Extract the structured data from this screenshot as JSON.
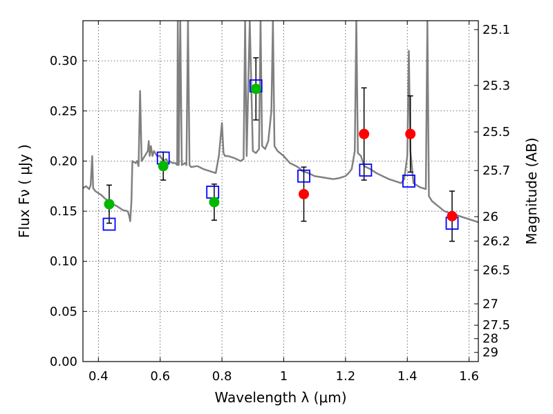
{
  "chart_data": {
    "type": "scatter",
    "title": "",
    "xlabel": "Wavelength  λ (μm)",
    "ylabel": "Flux  Fν  ( μJy )",
    "ylabel_right": "Magnitude (AB)",
    "xlim": [
      0.35,
      1.63
    ],
    "ylim": [
      0.0,
      0.34
    ],
    "grid": true,
    "x_ticks": [
      0.4,
      0.6,
      0.8,
      1.0,
      1.2,
      1.4,
      1.6
    ],
    "x_tick_labels": [
      "0.4",
      "0.6",
      "0.8",
      "1",
      "1.2",
      "1.4",
      "1.6"
    ],
    "y_ticks": [
      0.0,
      0.05,
      0.1,
      0.15,
      0.2,
      0.25,
      0.3
    ],
    "y_tick_labels": [
      "0.00",
      "0.05",
      "0.10",
      "0.15",
      "0.20",
      "0.25",
      "0.30"
    ],
    "right_ticks": [
      {
        "mag": 25.1,
        "label": "25.1"
      },
      {
        "mag": 25.3,
        "label": "25.3"
      },
      {
        "mag": 25.5,
        "label": "25.5"
      },
      {
        "mag": 25.7,
        "label": "25.7"
      },
      {
        "mag": 26.0,
        "label": "26"
      },
      {
        "mag": 26.2,
        "label": "26.2"
      },
      {
        "mag": 26.5,
        "label": "26.5"
      },
      {
        "mag": 27.0,
        "label": "27"
      },
      {
        "mag": 27.5,
        "label": "27.5"
      },
      {
        "mag": 28.0,
        "label": "28"
      },
      {
        "mag": 29.0,
        "label": "29"
      }
    ],
    "series": [
      {
        "kind": "line",
        "color": "#808080",
        "points": [
          [
            0.35,
            0.173
          ],
          [
            0.36,
            0.175
          ],
          [
            0.37,
            0.172
          ],
          [
            0.375,
            0.176
          ],
          [
            0.38,
            0.205
          ],
          [
            0.383,
            0.173
          ],
          [
            0.39,
            0.17
          ],
          [
            0.4,
            0.168
          ],
          [
            0.41,
            0.166
          ],
          [
            0.42,
            0.163
          ],
          [
            0.44,
            0.158
          ],
          [
            0.46,
            0.155
          ],
          [
            0.48,
            0.151
          ],
          [
            0.495,
            0.15
          ],
          [
            0.5,
            0.145
          ],
          [
            0.503,
            0.14
          ],
          [
            0.507,
            0.16
          ],
          [
            0.51,
            0.2
          ],
          [
            0.52,
            0.198
          ],
          [
            0.525,
            0.2
          ],
          [
            0.53,
            0.195
          ],
          [
            0.535,
            0.27
          ],
          [
            0.54,
            0.2
          ],
          [
            0.55,
            0.205
          ],
          [
            0.56,
            0.21
          ],
          [
            0.563,
            0.22
          ],
          [
            0.566,
            0.205
          ],
          [
            0.57,
            0.215
          ],
          [
            0.575,
            0.205
          ],
          [
            0.58,
            0.21
          ],
          [
            0.59,
            0.205
          ],
          [
            0.6,
            0.205
          ],
          [
            0.61,
            0.2
          ],
          [
            0.62,
            0.202
          ],
          [
            0.625,
            0.198
          ],
          [
            0.63,
            0.2
          ],
          [
            0.64,
            0.198
          ],
          [
            0.65,
            0.198
          ],
          [
            0.655,
            0.196
          ],
          [
            0.657,
            0.34
          ],
          [
            0.66,
            0.196
          ],
          [
            0.665,
            0.34
          ],
          [
            0.67,
            0.196
          ],
          [
            0.68,
            0.198
          ],
          [
            0.685,
            0.196
          ],
          [
            0.69,
            0.34
          ],
          [
            0.695,
            0.196
          ],
          [
            0.7,
            0.194
          ],
          [
            0.72,
            0.195
          ],
          [
            0.74,
            0.192
          ],
          [
            0.76,
            0.19
          ],
          [
            0.78,
            0.188
          ],
          [
            0.79,
            0.205
          ],
          [
            0.8,
            0.238
          ],
          [
            0.805,
            0.208
          ],
          [
            0.81,
            0.205
          ],
          [
            0.82,
            0.205
          ],
          [
            0.84,
            0.203
          ],
          [
            0.86,
            0.2
          ],
          [
            0.87,
            0.202
          ],
          [
            0.875,
            0.34
          ],
          [
            0.88,
            0.205
          ],
          [
            0.89,
            0.34
          ],
          [
            0.9,
            0.21
          ],
          [
            0.91,
            0.208
          ],
          [
            0.92,
            0.212
          ],
          [
            0.925,
            0.34
          ],
          [
            0.93,
            0.215
          ],
          [
            0.94,
            0.212
          ],
          [
            0.95,
            0.22
          ],
          [
            0.96,
            0.25
          ],
          [
            0.965,
            0.34
          ],
          [
            0.97,
            0.215
          ],
          [
            0.98,
            0.21
          ],
          [
            1.0,
            0.205
          ],
          [
            1.02,
            0.198
          ],
          [
            1.04,
            0.195
          ],
          [
            1.05,
            0.193
          ],
          [
            1.06,
            0.19
          ],
          [
            1.08,
            0.188
          ],
          [
            1.1,
            0.185
          ],
          [
            1.12,
            0.184
          ],
          [
            1.14,
            0.183
          ],
          [
            1.16,
            0.182
          ],
          [
            1.18,
            0.183
          ],
          [
            1.2,
            0.185
          ],
          [
            1.21,
            0.188
          ],
          [
            1.22,
            0.192
          ],
          [
            1.23,
            0.21
          ],
          [
            1.235,
            0.34
          ],
          [
            1.24,
            0.208
          ],
          [
            1.25,
            0.205
          ],
          [
            1.26,
            0.195
          ],
          [
            1.28,
            0.192
          ],
          [
            1.3,
            0.188
          ],
          [
            1.32,
            0.185
          ],
          [
            1.34,
            0.182
          ],
          [
            1.36,
            0.18
          ],
          [
            1.38,
            0.178
          ],
          [
            1.39,
            0.182
          ],
          [
            1.4,
            0.205
          ],
          [
            1.405,
            0.31
          ],
          [
            1.41,
            0.21
          ],
          [
            1.42,
            0.178
          ],
          [
            1.44,
            0.174
          ],
          [
            1.46,
            0.172
          ],
          [
            1.465,
            0.34
          ],
          [
            1.47,
            0.165
          ],
          [
            1.48,
            0.16
          ],
          [
            1.5,
            0.155
          ],
          [
            1.52,
            0.15
          ],
          [
            1.54,
            0.148
          ],
          [
            1.56,
            0.146
          ],
          [
            1.58,
            0.144
          ],
          [
            1.6,
            0.142
          ],
          [
            1.62,
            0.14
          ],
          [
            1.63,
            0.139
          ]
        ]
      },
      {
        "kind": "markers",
        "marker": "square",
        "color": "#0000ff",
        "points": [
          [
            0.435,
            0.137
          ],
          [
            0.61,
            0.203
          ],
          [
            0.77,
            0.169
          ],
          [
            0.91,
            0.275
          ],
          [
            1.065,
            0.185
          ],
          [
            1.265,
            0.191
          ],
          [
            1.405,
            0.18
          ],
          [
            1.545,
            0.138
          ]
        ]
      },
      {
        "kind": "markers",
        "marker": "circle",
        "color": "#00b800",
        "points": [
          [
            0.435,
            0.157
          ],
          [
            0.61,
            0.195
          ],
          [
            0.775,
            0.159
          ],
          [
            0.91,
            0.272
          ]
        ],
        "errors": [
          0.019,
          0.014,
          0.018,
          0.031
        ]
      },
      {
        "kind": "markers",
        "marker": "circle",
        "color": "#ff0000",
        "points": [
          [
            1.065,
            0.167
          ],
          [
            1.26,
            0.227
          ],
          [
            1.41,
            0.227
          ],
          [
            1.545,
            0.145
          ]
        ],
        "errors": [
          0.027,
          0.046,
          0.038,
          0.025
        ]
      }
    ]
  }
}
